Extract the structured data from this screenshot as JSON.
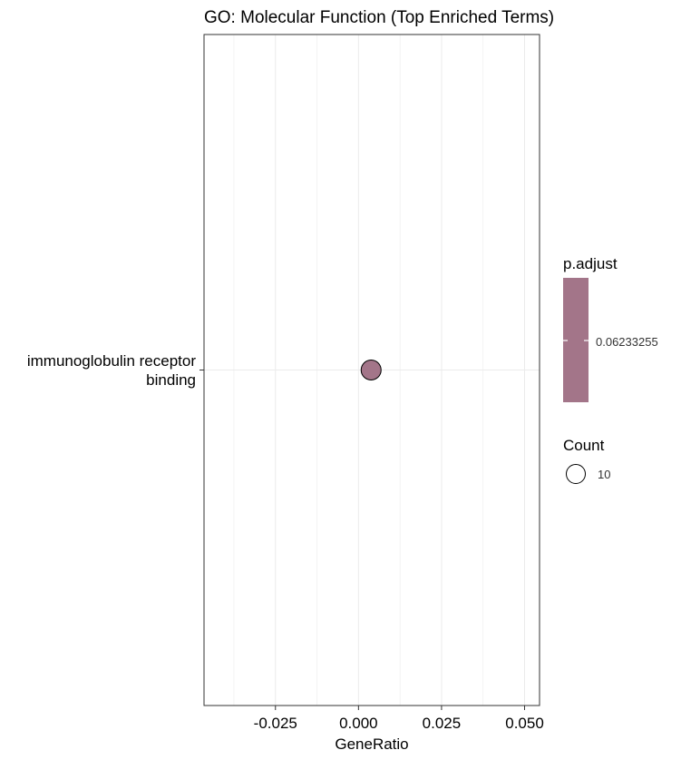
{
  "chart_data": {
    "type": "scatter",
    "title": "GO: Molecular Function (Top Enriched Terms)",
    "xlabel": "GeneRatio",
    "ylabel": "",
    "xlim": [
      -0.0465,
      0.0545
    ],
    "x_ticks": [
      -0.025,
      0.0,
      0.025,
      0.05
    ],
    "x_tick_labels": [
      "-0.025",
      "0.000",
      "0.025",
      "0.050"
    ],
    "categories": [
      "immunoglobulin receptor binding"
    ],
    "category_label_lines": [
      [
        "immunoglobulin receptor",
        "binding"
      ]
    ],
    "points": [
      {
        "term": "immunoglobulin receptor binding",
        "x": 0.0038,
        "count": 10,
        "p_adjust": 0.06233255
      }
    ],
    "grid": true,
    "legend": {
      "placement": "right",
      "color_title": "p.adjust",
      "color_label": "0.06233255",
      "size_title": "Count",
      "size_label": "10"
    },
    "colors": {
      "point_fill": "#a37589",
      "point_stroke": "#000000",
      "grid": "#ebebeb",
      "panel_border": "#333333"
    }
  }
}
